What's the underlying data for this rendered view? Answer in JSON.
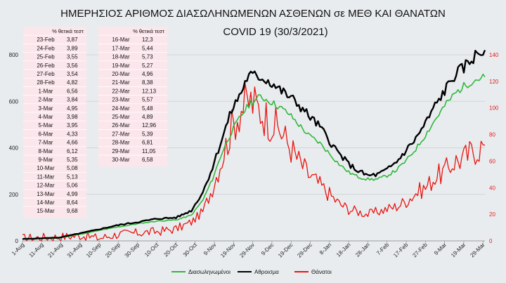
{
  "colors": {
    "background": "#e9ecef",
    "hospitalized": "#2fb83a",
    "total": "#000000",
    "deaths": "#e8150f",
    "right_axis": "#e02020",
    "table_bg": "#fbe6ec"
  },
  "chart_data": {
    "type": "line",
    "title": "ΗΜΕΡΗΣΙΟΣ ΑΡΙΘΜΟΣ ΔΙΑΣΩΛΗΝΩΜΕΝΩΝ ΑΣΘΕΝΩΝ σε ΜΕΘ ΚΑΙ ΘΑΝΑΤΩΝ",
    "subtitle": "COVID 19 (30/3/2021)",
    "x_ticks": [
      "1-Aug",
      "11-Aug",
      "21-Aug",
      "31-Aug",
      "10-Sep",
      "20-Sep",
      "30-Sep",
      "10-Oct",
      "20-Oct",
      "30-Oct",
      "9-Nov",
      "19-Nov",
      "29-Nov",
      "9-Dec",
      "19-Dec",
      "29-Dec",
      "8-Jan",
      "18-Jan",
      "28-Jan",
      "7-Feb",
      "17-Feb",
      "27-Feb",
      "9-Mar",
      "19-Mar",
      "29-Mar"
    ],
    "x_start": "2020-08-01",
    "x_end": "2021-03-30",
    "y_left": {
      "min": 0,
      "max": 800,
      "ticks": [
        0,
        200,
        400,
        600,
        800
      ]
    },
    "y_right": {
      "min": 0,
      "max": 140,
      "ticks": [
        0,
        20,
        40,
        60,
        80,
        100,
        120,
        140
      ]
    },
    "grid": true,
    "legend_position": "bottom",
    "series": [
      {
        "name": "Διασωληνωμένοι",
        "axis": "left",
        "key": "hospitalized",
        "points": [
          [
            "2020-08-01",
            8
          ],
          [
            "2020-08-20",
            12
          ],
          [
            "2020-09-01",
            30
          ],
          [
            "2020-09-10",
            45
          ],
          [
            "2020-09-20",
            60
          ],
          [
            "2020-10-01",
            75
          ],
          [
            "2020-10-10",
            85
          ],
          [
            "2020-10-20",
            90
          ],
          [
            "2020-10-28",
            110
          ],
          [
            "2020-11-03",
            175
          ],
          [
            "2020-11-08",
            265
          ],
          [
            "2020-11-13",
            380
          ],
          [
            "2020-11-18",
            470
          ],
          [
            "2020-11-23",
            540
          ],
          [
            "2020-11-28",
            595
          ],
          [
            "2020-12-03",
            620
          ],
          [
            "2020-12-08",
            600
          ],
          [
            "2020-12-13",
            575
          ],
          [
            "2020-12-18",
            545
          ],
          [
            "2020-12-23",
            500
          ],
          [
            "2020-12-28",
            455
          ],
          [
            "2021-01-03",
            420
          ],
          [
            "2021-01-08",
            375
          ],
          [
            "2021-01-13",
            330
          ],
          [
            "2021-01-18",
            295
          ],
          [
            "2021-01-23",
            275
          ],
          [
            "2021-01-28",
            265
          ],
          [
            "2021-02-02",
            265
          ],
          [
            "2021-02-07",
            280
          ],
          [
            "2021-02-12",
            305
          ],
          [
            "2021-02-17",
            345
          ],
          [
            "2021-02-22",
            395
          ],
          [
            "2021-02-27",
            455
          ],
          [
            "2021-03-04",
            520
          ],
          [
            "2021-03-09",
            580
          ],
          [
            "2021-03-14",
            630
          ],
          [
            "2021-03-19",
            665
          ],
          [
            "2021-03-24",
            690
          ],
          [
            "2021-03-30",
            705
          ]
        ]
      },
      {
        "name": "Αθροισμα",
        "axis": "left",
        "key": "total",
        "points": [
          [
            "2020-08-01",
            8
          ],
          [
            "2020-08-20",
            14
          ],
          [
            "2020-09-01",
            34
          ],
          [
            "2020-09-10",
            50
          ],
          [
            "2020-09-20",
            68
          ],
          [
            "2020-10-01",
            82
          ],
          [
            "2020-10-10",
            95
          ],
          [
            "2020-10-20",
            100
          ],
          [
            "2020-10-28",
            130
          ],
          [
            "2020-11-03",
            210
          ],
          [
            "2020-11-08",
            315
          ],
          [
            "2020-11-13",
            440
          ],
          [
            "2020-11-18",
            560
          ],
          [
            "2020-11-23",
            640
          ],
          [
            "2020-11-26",
            700
          ],
          [
            "2020-11-28",
            710
          ],
          [
            "2020-12-03",
            705
          ],
          [
            "2020-12-08",
            685
          ],
          [
            "2020-12-13",
            650
          ],
          [
            "2020-12-18",
            620
          ],
          [
            "2020-12-23",
            585
          ],
          [
            "2020-12-28",
            540
          ],
          [
            "2021-01-03",
            490
          ],
          [
            "2021-01-08",
            430
          ],
          [
            "2021-01-13",
            375
          ],
          [
            "2021-01-18",
            330
          ],
          [
            "2021-01-23",
            300
          ],
          [
            "2021-01-28",
            280
          ],
          [
            "2021-02-02",
            285
          ],
          [
            "2021-02-07",
            305
          ],
          [
            "2021-02-12",
            340
          ],
          [
            "2021-02-17",
            390
          ],
          [
            "2021-02-22",
            440
          ],
          [
            "2021-02-27",
            505
          ],
          [
            "2021-03-04",
            580
          ],
          [
            "2021-03-09",
            645
          ],
          [
            "2021-03-14",
            710
          ],
          [
            "2021-03-19",
            745
          ],
          [
            "2021-03-24",
            790
          ],
          [
            "2021-03-30",
            820
          ]
        ]
      },
      {
        "name": "Θάνατοι",
        "axis": "right",
        "key": "deaths",
        "points": [
          [
            "2020-08-01",
            2
          ],
          [
            "2020-08-20",
            3
          ],
          [
            "2020-09-01",
            4
          ],
          [
            "2020-09-10",
            2
          ],
          [
            "2020-09-20",
            5
          ],
          [
            "2020-10-01",
            6
          ],
          [
            "2020-10-10",
            7
          ],
          [
            "2020-10-20",
            9
          ],
          [
            "2020-10-28",
            14
          ],
          [
            "2020-11-03",
            22
          ],
          [
            "2020-11-08",
            40
          ],
          [
            "2020-11-13",
            62
          ],
          [
            "2020-11-18",
            85
          ],
          [
            "2020-11-23",
            100
          ],
          [
            "2020-11-28",
            105
          ],
          [
            "2020-12-03",
            98
          ],
          [
            "2020-12-08",
            90
          ],
          [
            "2020-12-13",
            84
          ],
          [
            "2020-12-18",
            72
          ],
          [
            "2020-12-23",
            60
          ],
          [
            "2020-12-28",
            50
          ],
          [
            "2021-01-03",
            42
          ],
          [
            "2021-01-08",
            35
          ],
          [
            "2021-01-13",
            28
          ],
          [
            "2021-01-18",
            24
          ],
          [
            "2021-01-23",
            22
          ],
          [
            "2021-01-28",
            20
          ],
          [
            "2021-02-02",
            22
          ],
          [
            "2021-02-07",
            24
          ],
          [
            "2021-02-12",
            26
          ],
          [
            "2021-02-17",
            30
          ],
          [
            "2021-02-22",
            36
          ],
          [
            "2021-02-27",
            40
          ],
          [
            "2021-03-04",
            48
          ],
          [
            "2021-03-09",
            52
          ],
          [
            "2021-03-14",
            60
          ],
          [
            "2021-03-19",
            62
          ],
          [
            "2021-03-24",
            68
          ],
          [
            "2021-03-30",
            72
          ]
        ]
      }
    ]
  },
  "table_left": {
    "header": "% θετικά τεστ",
    "rows": [
      [
        "23-Feb",
        "3,87"
      ],
      [
        "24-Feb",
        "3,89"
      ],
      [
        "25-Feb",
        "3,55"
      ],
      [
        "26-Feb",
        "3,56"
      ],
      [
        "27-Feb",
        "3,54"
      ],
      [
        "28-Feb",
        "4,82"
      ],
      [
        "1-Mar",
        "6,56"
      ],
      [
        "2-Mar",
        "3,84"
      ],
      [
        "3-Mar",
        "4,95"
      ],
      [
        "4-Mar",
        "3,98"
      ],
      [
        "5-Mar",
        "3,95"
      ],
      [
        "6-Mar",
        "4,33"
      ],
      [
        "7-Mar",
        "4,66"
      ],
      [
        "8-Mar",
        "6,12"
      ],
      [
        "9-Mar",
        "5,35"
      ],
      [
        "10-Mar",
        "5,08"
      ],
      [
        "11-Mar",
        "5,13"
      ],
      [
        "12-Mar",
        "5,06"
      ],
      [
        "13-Mar",
        "4,99"
      ],
      [
        "14-Mar",
        "8,64"
      ],
      [
        "15-Mar",
        "9,68"
      ]
    ]
  },
  "table_right": {
    "header": "% θετικά τεστ",
    "rows": [
      [
        "16-Mar",
        "12,3"
      ],
      [
        "17-Mar",
        "5,44"
      ],
      [
        "18-Mar",
        "5,73"
      ],
      [
        "19-Mar",
        "5,27"
      ],
      [
        "20-Mar",
        "4,96"
      ],
      [
        "21-Mar",
        "8,38"
      ],
      [
        "22-Mar",
        "12,13"
      ],
      [
        "23-Mar",
        "5,57"
      ],
      [
        "24-Mar",
        "5,48"
      ],
      [
        "25-Mar",
        "4,89"
      ],
      [
        "26-Mar",
        "12,96"
      ],
      [
        "27-Mar",
        "5,39"
      ],
      [
        "28-Mar",
        "6,81"
      ],
      [
        "29-Mar",
        "11,05"
      ],
      [
        "30-Mar",
        "6,58"
      ]
    ]
  }
}
